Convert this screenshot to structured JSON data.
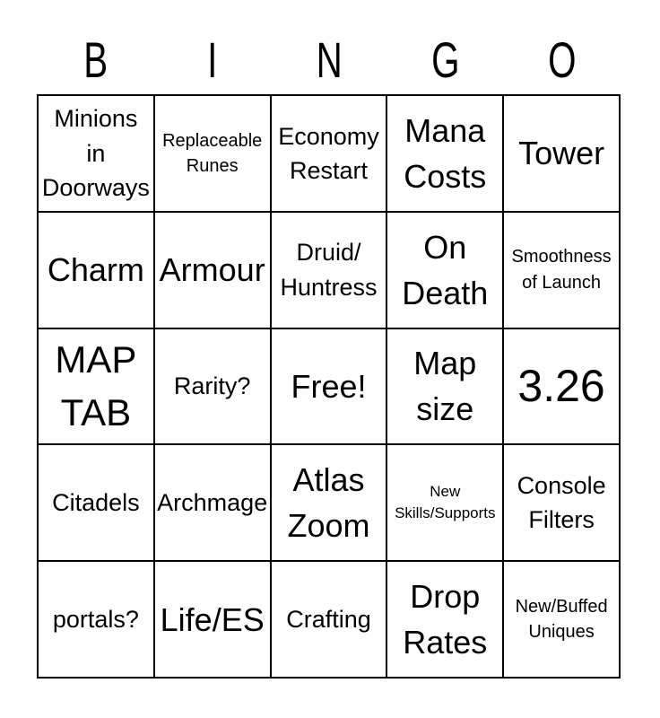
{
  "page": {
    "title": "BINGO",
    "background_color": "#ffffff",
    "line_color": "#000000",
    "text_color": "#000000"
  },
  "header": {
    "letters": [
      "B",
      "I",
      "N",
      "G",
      "O"
    ]
  },
  "grid": {
    "rows": 5,
    "cols": 5,
    "cells": [
      [
        {
          "text": "Minions\nin\nDoorways",
          "scale": "md"
        },
        {
          "text": "Replaceable\nRunes",
          "scale": "sm"
        },
        {
          "text": "Economy\nRestart",
          "scale": "md"
        },
        {
          "text": "Mana\nCosts",
          "scale": "lg"
        },
        {
          "text": "Tower",
          "scale": "lg"
        }
      ],
      [
        {
          "text": "Charm",
          "scale": "lg"
        },
        {
          "text": "Armour",
          "scale": "lg"
        },
        {
          "text": "Druid/\nHuntress",
          "scale": "md"
        },
        {
          "text": "On\nDeath",
          "scale": "lg"
        },
        {
          "text": "Smoothness\nof Launch",
          "scale": "sm"
        }
      ],
      [
        {
          "text": "MAP\nTAB",
          "scale": "xl"
        },
        {
          "text": "Rarity?",
          "scale": "md"
        },
        {
          "text": "Free!",
          "scale": "lg"
        },
        {
          "text": "Map\nsize",
          "scale": "lg"
        },
        {
          "text": "3.26",
          "scale": "xxl"
        }
      ],
      [
        {
          "text": "Citadels",
          "scale": "md"
        },
        {
          "text": "Archmage",
          "scale": "md"
        },
        {
          "text": "Atlas\nZoom",
          "scale": "lg"
        },
        {
          "text": "New\nSkills/Supports",
          "scale": "xs"
        },
        {
          "text": "Console\nFilters",
          "scale": "md"
        }
      ],
      [
        {
          "text": "portals?",
          "scale": "md"
        },
        {
          "text": "Life/ES",
          "scale": "lg"
        },
        {
          "text": "Crafting",
          "scale": "md"
        },
        {
          "text": "Drop\nRates",
          "scale": "lg"
        },
        {
          "text": "New/Buffed\nUniques",
          "scale": "sm"
        }
      ]
    ]
  }
}
